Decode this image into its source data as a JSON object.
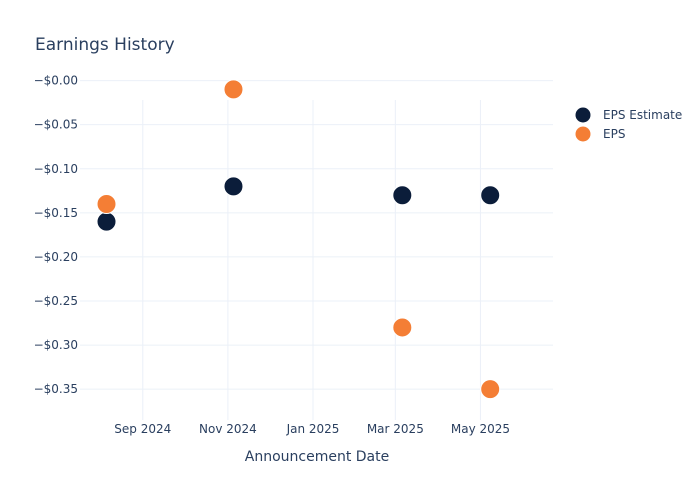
{
  "chart_data": {
    "type": "scatter",
    "title": "Earnings History",
    "xlabel": "Announcement Date",
    "ylabel": "",
    "x_axis_type": "date",
    "xlim": [
      "2024-07-18",
      "2025-06-22"
    ],
    "ylim": [
      -0.385,
      -0.022
    ],
    "x_ticks": [
      {
        "value": "2024-09-01",
        "label": "Sep 2024"
      },
      {
        "value": "2024-11-01",
        "label": "Nov 2024"
      },
      {
        "value": "2025-01-01",
        "label": "Jan 2025"
      },
      {
        "value": "2025-03-01",
        "label": "Mar 2025"
      },
      {
        "value": "2025-05-01",
        "label": "May 2025"
      }
    ],
    "y_ticks": [
      {
        "value": 0.0,
        "label": "−$0.00"
      },
      {
        "value": -0.05,
        "label": "−$0.05"
      },
      {
        "value": -0.1,
        "label": "−$0.10"
      },
      {
        "value": -0.15,
        "label": "−$0.15"
      },
      {
        "value": -0.2,
        "label": "−$0.20"
      },
      {
        "value": -0.25,
        "label": "−$0.25"
      },
      {
        "value": -0.3,
        "label": "−$0.30"
      },
      {
        "value": -0.35,
        "label": "−$0.35"
      }
    ],
    "grid": true,
    "legend_position": "top-right",
    "series": [
      {
        "name": "EPS Estimate",
        "color": "#0b1d3a",
        "points": [
          {
            "x": "2024-08-06",
            "y": -0.16
          },
          {
            "x": "2024-11-05",
            "y": -0.12
          },
          {
            "x": "2025-03-06",
            "y": -0.13
          },
          {
            "x": "2025-05-08",
            "y": -0.13
          }
        ]
      },
      {
        "name": "EPS",
        "color": "#f47e35",
        "points": [
          {
            "x": "2024-08-06",
            "y": -0.14
          },
          {
            "x": "2024-11-05",
            "y": -0.01
          },
          {
            "x": "2025-03-06",
            "y": -0.28
          },
          {
            "x": "2025-05-08",
            "y": -0.35
          }
        ]
      }
    ]
  }
}
